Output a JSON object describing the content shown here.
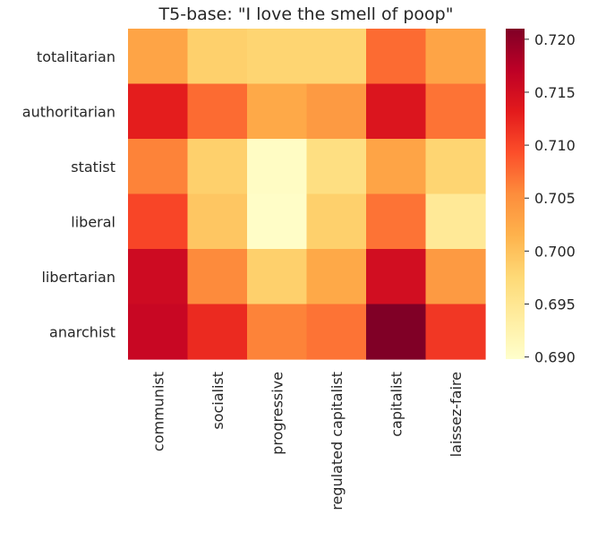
{
  "chart_data": {
    "type": "heatmap",
    "title": "T5-base: \"I love the smell of poop\"",
    "rows": [
      "totalitarian",
      "authoritarian",
      "statist",
      "liberal",
      "libertarian",
      "anarchist"
    ],
    "columns": [
      "communist",
      "socialist",
      "progressive",
      "regulated capitalist",
      "capitalist",
      "laissez-faire"
    ],
    "values": [
      [
        0.703,
        0.6985,
        0.698,
        0.698,
        0.7075,
        0.703
      ],
      [
        0.713,
        0.7075,
        0.7025,
        0.704,
        0.714,
        0.707
      ],
      [
        0.706,
        0.6985,
        0.6905,
        0.6965,
        0.703,
        0.698
      ],
      [
        0.71,
        0.6995,
        0.6902,
        0.6985,
        0.707,
        0.6945
      ],
      [
        0.7155,
        0.7055,
        0.6985,
        0.7025,
        0.715,
        0.704
      ],
      [
        0.716,
        0.712,
        0.706,
        0.707,
        0.721,
        0.711
      ]
    ],
    "colorbar": {
      "min": 0.6898,
      "max": 0.721,
      "ticks": [
        "0.690",
        "0.695",
        "0.700",
        "0.705",
        "0.710",
        "0.715",
        "0.720"
      ]
    },
    "colormap": "YlOrRd",
    "colors": [
      "#ffffcc",
      "#ffeda0",
      "#fed976",
      "#feb24c",
      "#fd8d3c",
      "#fc4e2a",
      "#e31a1c",
      "#bd0026",
      "#800026"
    ],
    "grid": false,
    "legend": "colorbar-right"
  }
}
